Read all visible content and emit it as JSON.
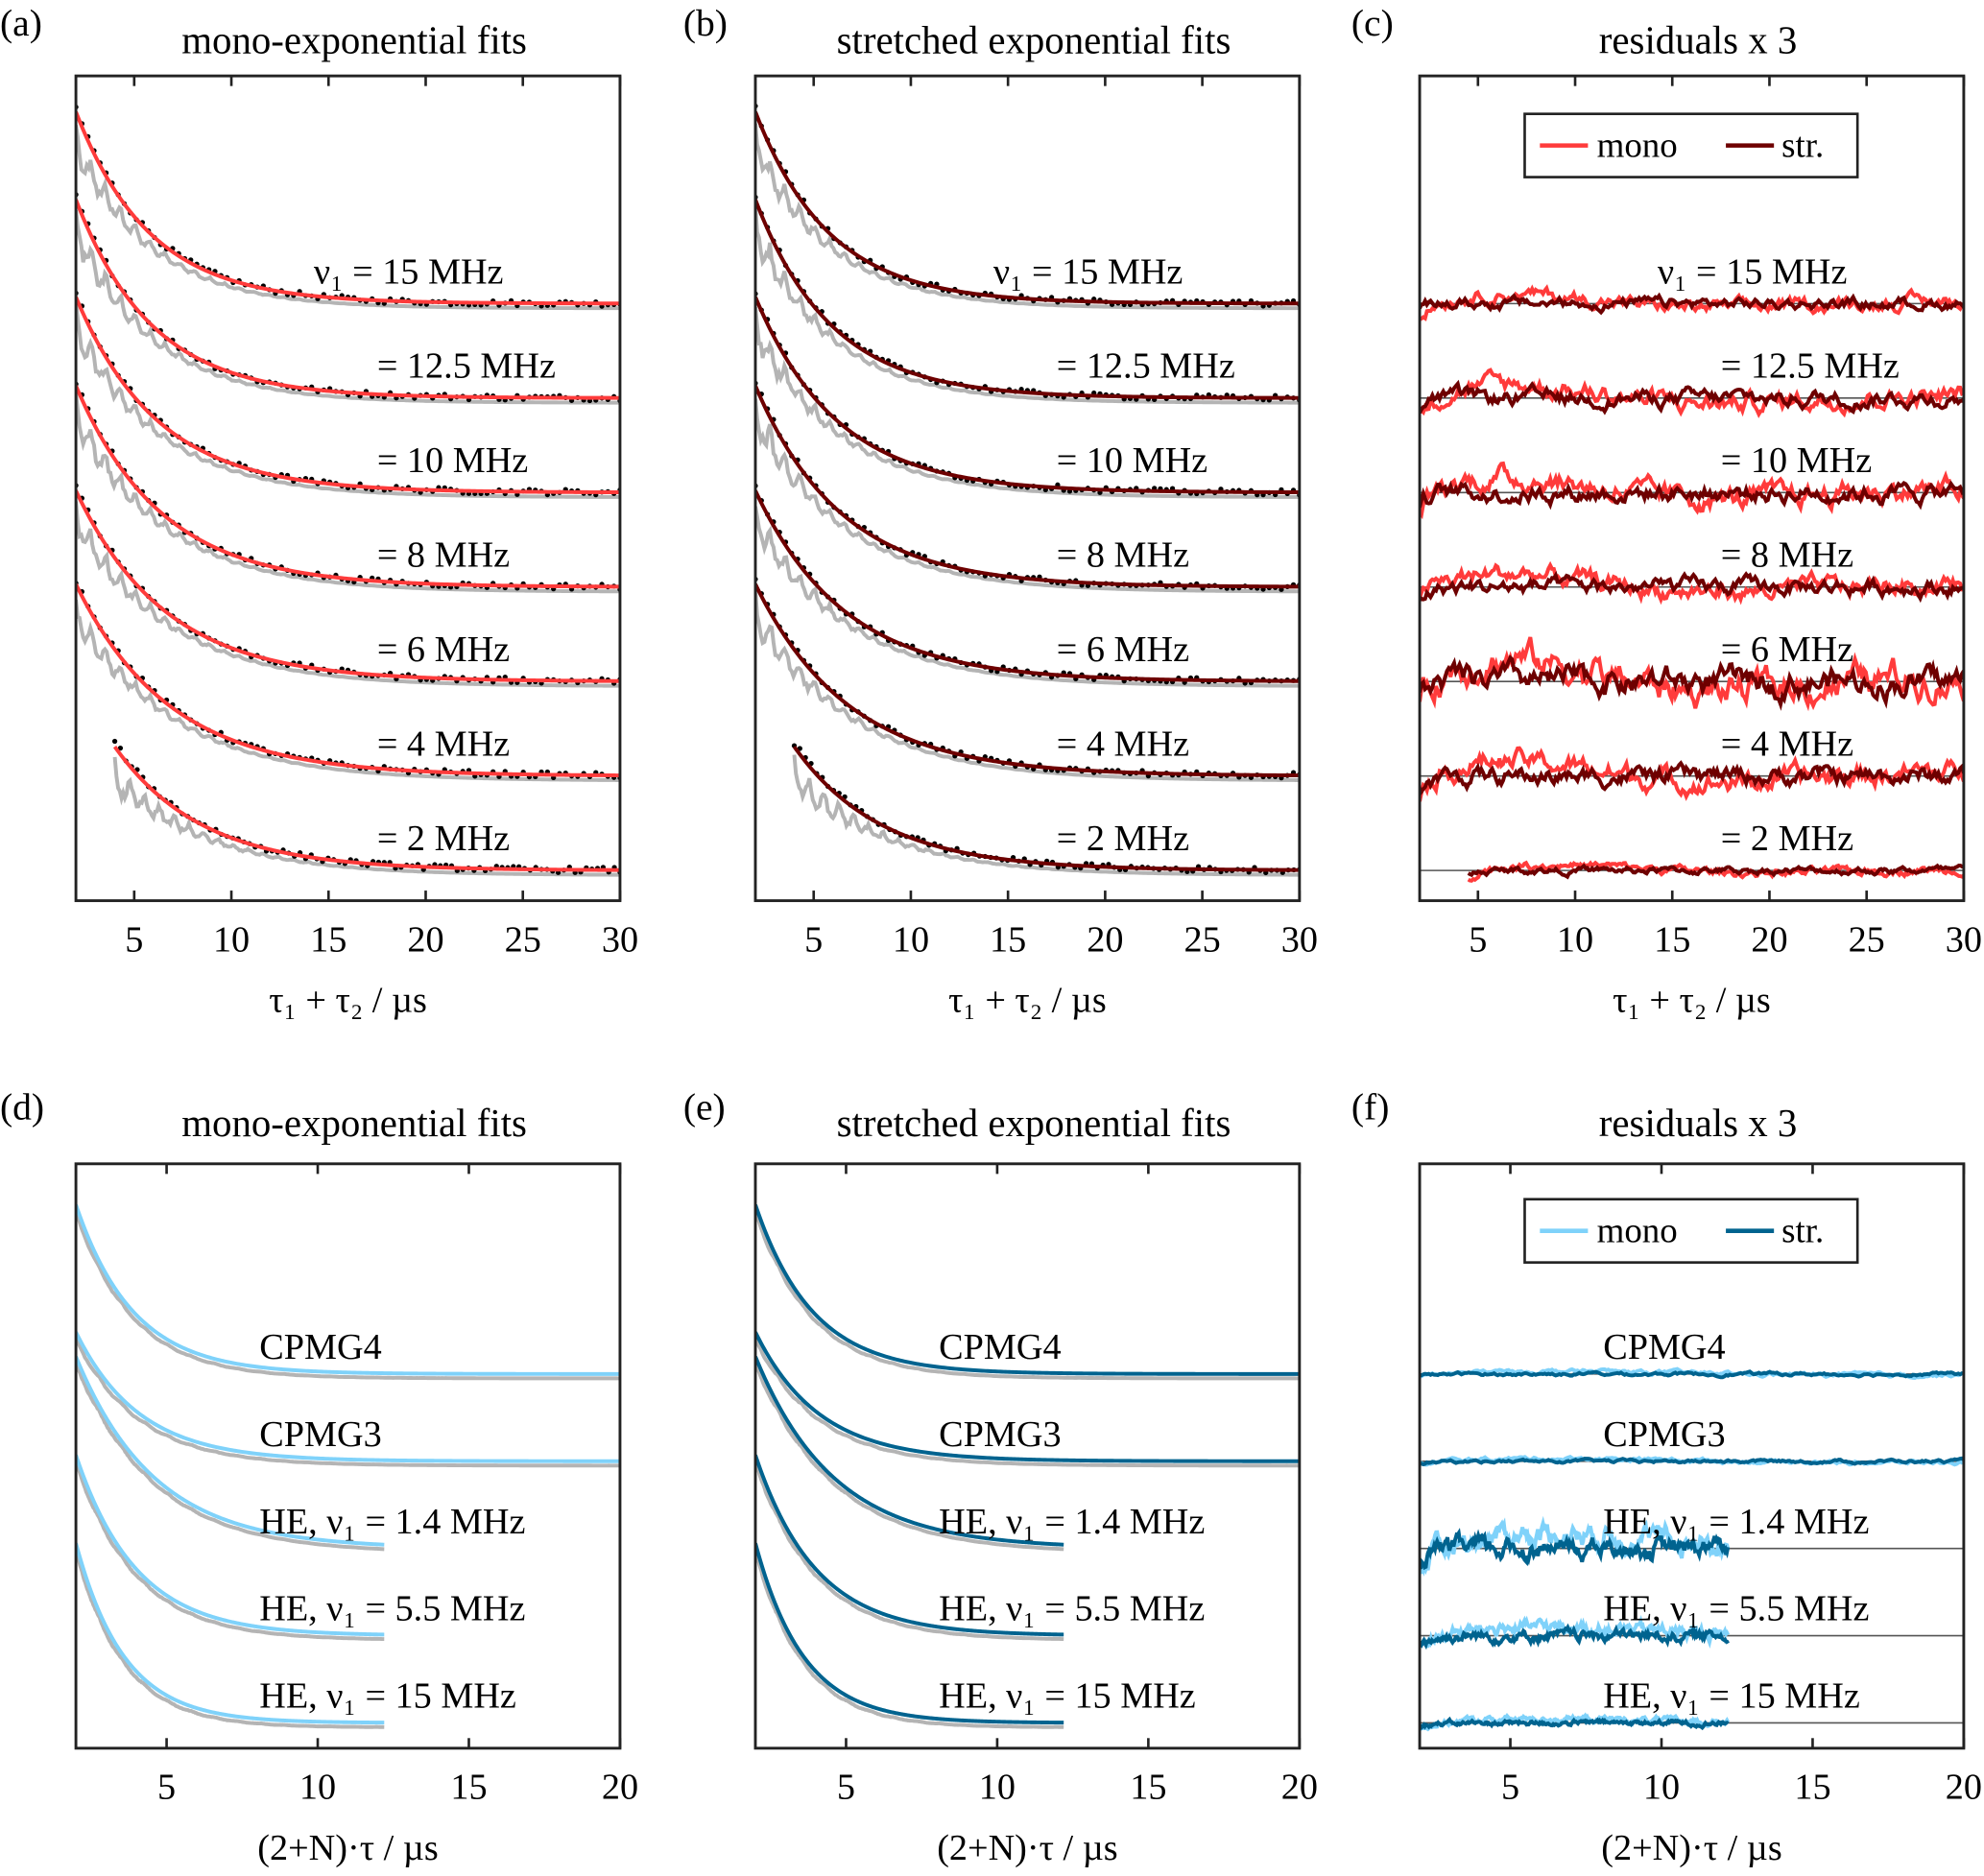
{
  "colors": {
    "mono_red": "#ff3b3b",
    "str_red": "#6e0000",
    "mono_blue": "#7fd2fa",
    "str_blue": "#00638f",
    "raw_gray": "#b4b4b4",
    "dots": "#000000",
    "baseline": "#555555"
  },
  "chart_data": [
    {
      "panel": "(a)",
      "type": "line",
      "title": "mono-exponential fits",
      "xlabel": "τ₁ + τ₂  / µs",
      "xlim": [
        2,
        30
      ],
      "ylim": [
        0,
        8.73
      ],
      "xticks": [
        5,
        10,
        15,
        20,
        25,
        30
      ],
      "grid": false,
      "fit": "mono",
      "series": [
        {
          "label": "ν₁ = 15 MHz",
          "offset": 6.32,
          "amplitude": 2.03,
          "decay_us": 3.8,
          "x_start": 2,
          "x_end": 30
        },
        {
          "label": "= 12.5 MHz",
          "offset": 5.32,
          "amplitude": 2.1,
          "decay_us": 3.9,
          "x_start": 2,
          "x_end": 30
        },
        {
          "label": "= 10 MHz",
          "offset": 4.32,
          "amplitude": 2.07,
          "decay_us": 4.2,
          "x_start": 2,
          "x_end": 30
        },
        {
          "label": "= 8 MHz",
          "offset": 3.32,
          "amplitude": 2.13,
          "decay_us": 4.4,
          "x_start": 2,
          "x_end": 30
        },
        {
          "label": "= 6 MHz",
          "offset": 2.32,
          "amplitude": 2.02,
          "decay_us": 4.6,
          "x_start": 2,
          "x_end": 30
        },
        {
          "label": "= 4 MHz",
          "offset": 1.32,
          "amplitude": 2.03,
          "decay_us": 4.8,
          "x_start": 2,
          "x_end": 30
        },
        {
          "label": "= 2 MHz",
          "offset": 0.32,
          "amplitude": 1.31,
          "decay_us": 4.5,
          "x_start": 4,
          "x_end": 30
        }
      ]
    },
    {
      "panel": "(b)",
      "type": "line",
      "title": "stretched exponential fits",
      "xlabel": "τ₁ + τ₂  / µs",
      "xlim": [
        2,
        30
      ],
      "ylim": [
        0,
        8.73
      ],
      "xticks": [
        5,
        10,
        15,
        20,
        25,
        30
      ],
      "grid": false,
      "fit": "stretched",
      "series": [
        {
          "label": "ν₁ = 15 MHz",
          "offset": 6.32,
          "amplitude": 2.03,
          "decay_us": 3.8,
          "x_start": 2,
          "x_end": 30
        },
        {
          "label": "= 12.5 MHz",
          "offset": 5.32,
          "amplitude": 2.1,
          "decay_us": 3.9,
          "x_start": 2,
          "x_end": 30
        },
        {
          "label": "= 10 MHz",
          "offset": 4.32,
          "amplitude": 2.07,
          "decay_us": 4.2,
          "x_start": 2,
          "x_end": 30
        },
        {
          "label": "= 8 MHz",
          "offset": 3.32,
          "amplitude": 2.13,
          "decay_us": 4.4,
          "x_start": 2,
          "x_end": 30
        },
        {
          "label": "= 6 MHz",
          "offset": 2.32,
          "amplitude": 2.02,
          "decay_us": 4.6,
          "x_start": 2,
          "x_end": 30
        },
        {
          "label": "= 4 MHz",
          "offset": 1.32,
          "amplitude": 2.03,
          "decay_us": 4.8,
          "x_start": 2,
          "x_end": 30
        },
        {
          "label": "= 2 MHz",
          "offset": 0.32,
          "amplitude": 1.31,
          "decay_us": 4.5,
          "x_start": 4,
          "x_end": 30
        }
      ]
    },
    {
      "panel": "(c)",
      "type": "line",
      "title": "residuals x 3",
      "xlabel": "τ₁ + τ₂  / µs",
      "xlim": [
        2,
        30
      ],
      "ylim": [
        0,
        8.73
      ],
      "xticks": [
        5,
        10,
        15,
        20,
        25,
        30
      ],
      "grid": false,
      "residuals": true,
      "legend": {
        "position": "top",
        "entries": [
          "mono",
          "str."
        ]
      },
      "series": [
        {
          "label": "ν₁ = 15 MHz",
          "offset": 6.32,
          "x_start": 2,
          "x_end": 30
        },
        {
          "label": "= 12.5 MHz",
          "offset": 5.32,
          "x_start": 2,
          "x_end": 30
        },
        {
          "label": "= 10 MHz",
          "offset": 4.32,
          "x_start": 2,
          "x_end": 30
        },
        {
          "label": "= 8 MHz",
          "offset": 3.32,
          "x_start": 2,
          "x_end": 30
        },
        {
          "label": "= 6 MHz",
          "offset": 2.32,
          "x_start": 2,
          "x_end": 30
        },
        {
          "label": "= 4 MHz",
          "offset": 1.32,
          "x_start": 2,
          "x_end": 30
        },
        {
          "label": "= 2 MHz",
          "offset": 0.32,
          "x_start": 4.5,
          "x_end": 30
        }
      ]
    },
    {
      "panel": "(d)",
      "type": "line",
      "title": "mono-exponential fits",
      "xlabel": "(2+N)·τ / µs",
      "xlim": [
        2,
        20
      ],
      "ylim": [
        0,
        6.7
      ],
      "xticks": [
        5,
        10,
        15,
        20
      ],
      "grid": false,
      "fit": "mono",
      "series": [
        {
          "label": "CPMG4",
          "offset": 4.29,
          "amplitude": 1.94,
          "decay_us": 1.9,
          "x_start": 2,
          "x_end": 20
        },
        {
          "label": "CPMG3",
          "offset": 3.29,
          "amplitude": 1.48,
          "decay_us": 2.1,
          "x_start": 2,
          "x_end": 20
        },
        {
          "label": "HE, ν₁ = 1.4 MHz",
          "offset": 2.29,
          "amplitude": 2.2,
          "decay_us": 2.6,
          "x_start": 2,
          "x_end": 12.2
        },
        {
          "label": "HE, ν₁ = 5.5 MHz",
          "offset": 1.29,
          "amplitude": 2.07,
          "decay_us": 2.0,
          "x_start": 2,
          "x_end": 12.2
        },
        {
          "label": "HE, ν₁ = 15 MHz",
          "offset": 0.29,
          "amplitude": 2.06,
          "decay_us": 1.6,
          "x_start": 2,
          "x_end": 12.2
        }
      ]
    },
    {
      "panel": "(e)",
      "type": "line",
      "title": "stretched exponential fits",
      "xlabel": "(2+N)·τ / µs",
      "xlim": [
        2,
        20
      ],
      "ylim": [
        0,
        6.7
      ],
      "xticks": [
        5,
        10,
        15,
        20
      ],
      "grid": false,
      "fit": "stretched",
      "series": [
        {
          "label": "CPMG4",
          "offset": 4.29,
          "amplitude": 1.94,
          "decay_us": 1.9,
          "x_start": 2,
          "x_end": 20
        },
        {
          "label": "CPMG3",
          "offset": 3.29,
          "amplitude": 1.48,
          "decay_us": 2.1,
          "x_start": 2,
          "x_end": 20
        },
        {
          "label": "HE, ν₁ = 1.4 MHz",
          "offset": 2.29,
          "amplitude": 2.2,
          "decay_us": 2.6,
          "x_start": 2,
          "x_end": 12.2
        },
        {
          "label": "HE, ν₁ = 5.5 MHz",
          "offset": 1.29,
          "amplitude": 2.07,
          "decay_us": 2.0,
          "x_start": 2,
          "x_end": 12.2
        },
        {
          "label": "HE, ν₁ = 15 MHz",
          "offset": 0.29,
          "amplitude": 2.06,
          "decay_us": 1.6,
          "x_start": 2,
          "x_end": 12.2
        }
      ]
    },
    {
      "panel": "(f)",
      "type": "line",
      "title": "residuals x 3",
      "xlabel": "(2+N)·τ / µs",
      "xlim": [
        2,
        20
      ],
      "ylim": [
        0,
        6.7
      ],
      "xticks": [
        5,
        10,
        15,
        20
      ],
      "grid": false,
      "residuals": true,
      "legend": {
        "position": "top",
        "entries": [
          "mono",
          "str."
        ]
      },
      "series": [
        {
          "label": "CPMG4",
          "offset": 4.29,
          "x_start": 2,
          "x_end": 20
        },
        {
          "label": "CPMG3",
          "offset": 3.29,
          "x_start": 2,
          "x_end": 20
        },
        {
          "label": "HE, ν₁ = 1.4 MHz",
          "offset": 2.29,
          "x_start": 2,
          "x_end": 12.2
        },
        {
          "label": "HE, ν₁ = 5.5 MHz",
          "offset": 1.29,
          "x_start": 2,
          "x_end": 12.2
        },
        {
          "label": "HE, ν₁ = 15 MHz",
          "offset": 0.29,
          "x_start": 2,
          "x_end": 12.2
        }
      ]
    }
  ]
}
